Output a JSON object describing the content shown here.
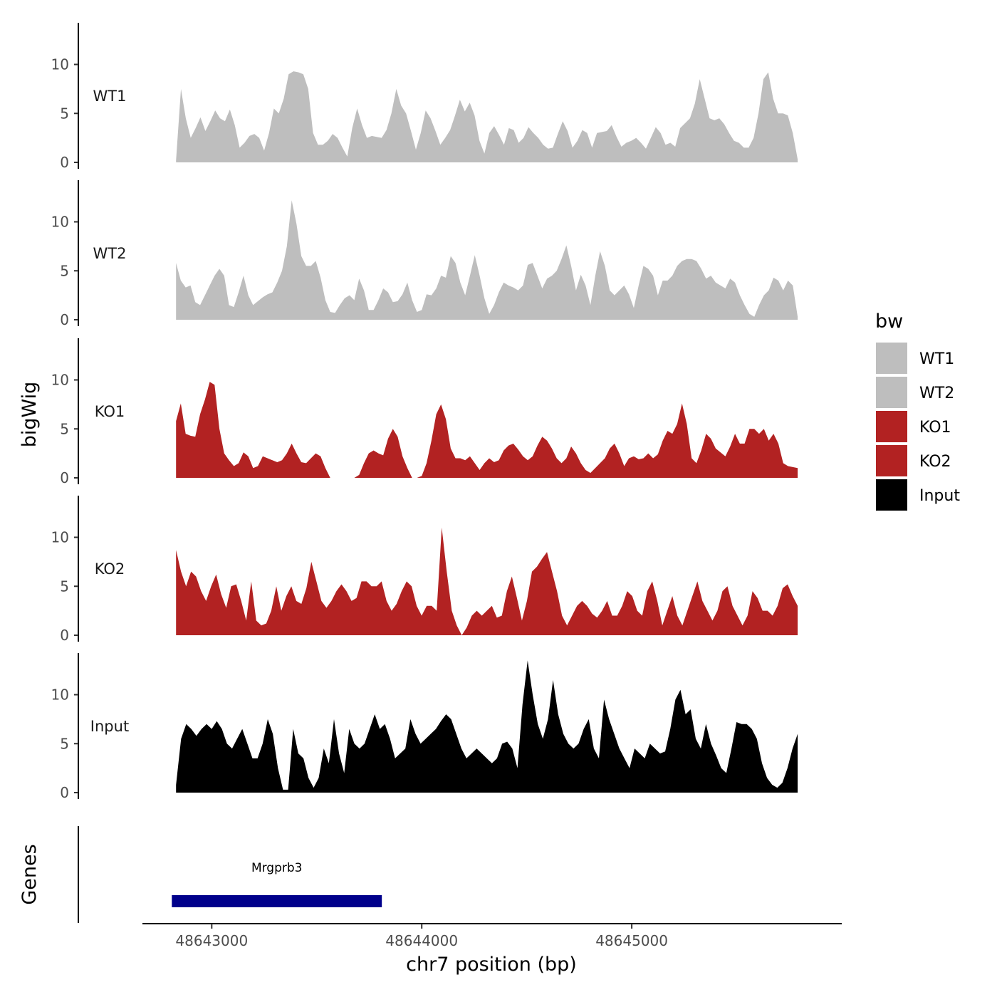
{
  "chart_data": {
    "type": "area",
    "xlabel": "chr7 position (bp)",
    "ylabel": "bigWig",
    "genes_label": "Genes",
    "xlim": [
      48642670,
      48646000
    ],
    "ylim": [
      0,
      14
    ],
    "x_ticks": [
      48643000,
      48644000,
      48645000
    ],
    "y_ticks": [
      0,
      5,
      10
    ],
    "legend": {
      "title": "bw",
      "entries": [
        {
          "label": "WT1",
          "color": "#bebebe"
        },
        {
          "label": "WT2",
          "color": "#bebebe"
        },
        {
          "label": "KO1",
          "color": "#b22222"
        },
        {
          "label": "KO2",
          "color": "#b22222"
        },
        {
          "label": "Input",
          "color": "#000000"
        }
      ]
    },
    "x_start": 48642830,
    "x_end": 48645790,
    "series": [
      {
        "name": "WT1",
        "color": "#bebebe",
        "values": [
          0.2,
          7.5,
          4.5,
          2.5,
          3.5,
          4.6,
          3.2,
          4.2,
          5.3,
          4.5,
          4.2,
          5.4,
          3.8,
          1.5,
          2.0,
          2.7,
          2.9,
          2.5,
          1.2,
          3.0,
          5.5,
          5.0,
          6.5,
          9.0,
          9.3,
          9.2,
          9.0,
          7.5,
          3.0,
          1.8,
          1.8,
          2.2,
          2.9,
          2.5,
          1.5,
          0.6,
          3.5,
          5.5,
          3.8,
          2.5,
          2.7,
          2.6,
          2.5,
          3.3,
          5.0,
          7.5,
          5.8,
          5.0,
          3.2,
          1.3,
          3.0,
          5.3,
          4.5,
          3.2,
          1.8,
          2.5,
          3.3,
          4.8,
          6.4,
          5.2,
          6.1,
          4.8,
          2.2,
          0.9,
          3.0,
          3.7,
          2.8,
          1.8,
          3.5,
          3.3,
          2.0,
          2.5,
          3.6,
          3.0,
          2.5,
          1.8,
          1.4,
          1.5,
          2.9,
          4.2,
          3.2,
          1.5,
          2.2,
          3.3,
          3.0,
          1.5,
          3.0,
          3.1,
          3.2,
          3.8,
          2.6,
          1.6,
          2.0,
          2.2,
          2.5,
          2.0,
          1.4,
          2.5,
          3.6,
          3.0,
          1.8,
          2.0,
          1.6,
          3.5,
          4.0,
          4.5,
          6.0,
          8.5,
          6.5,
          4.5,
          4.3,
          4.5,
          3.9,
          3.0,
          2.2,
          2.0,
          1.5,
          1.5,
          2.5,
          5.0,
          8.5,
          9.2,
          6.5,
          5.0,
          5.0,
          4.8,
          3.0,
          0.3
        ]
      },
      {
        "name": "WT2",
        "color": "#bebebe",
        "values": [
          5.8,
          4.0,
          3.3,
          3.5,
          1.8,
          1.5,
          2.5,
          3.5,
          4.5,
          5.2,
          4.5,
          1.5,
          1.3,
          2.8,
          4.5,
          2.5,
          1.5,
          1.9,
          2.3,
          2.6,
          2.8,
          3.8,
          5.0,
          7.5,
          12.2,
          9.8,
          6.5,
          5.5,
          5.5,
          6.0,
          4.3,
          2.0,
          0.8,
          0.7,
          1.5,
          2.2,
          2.5,
          2.0,
          4.2,
          3.0,
          1.0,
          1.0,
          2.0,
          3.2,
          2.8,
          1.8,
          1.9,
          2.6,
          3.8,
          2.0,
          0.8,
          1.0,
          2.6,
          2.5,
          3.2,
          4.5,
          4.3,
          6.5,
          5.8,
          3.8,
          2.5,
          4.5,
          6.6,
          4.5,
          2.2,
          0.6,
          1.5,
          2.8,
          3.8,
          3.5,
          3.3,
          3.0,
          3.5,
          5.6,
          5.8,
          4.5,
          3.2,
          4.2,
          4.5,
          5.0,
          6.2,
          7.6,
          5.5,
          3.0,
          4.6,
          3.5,
          1.5,
          4.5,
          7.0,
          5.5,
          3.0,
          2.5,
          3.0,
          3.5,
          2.6,
          1.2,
          3.5,
          5.5,
          5.2,
          4.5,
          2.5,
          4.0,
          4.0,
          4.5,
          5.5,
          6.0,
          6.2,
          6.2,
          6.0,
          5.2,
          4.2,
          4.5,
          3.8,
          3.5,
          3.2,
          4.2,
          3.8,
          2.5,
          1.5,
          0.6,
          0.3,
          1.5,
          2.5,
          3.0,
          4.3,
          4.0,
          3.0,
          4.0,
          3.5,
          0.3
        ]
      },
      {
        "name": "KO1",
        "color": "#b22222",
        "values": [
          5.8,
          7.6,
          4.5,
          4.3,
          4.2,
          6.5,
          8.0,
          9.8,
          9.5,
          5.0,
          2.5,
          1.8,
          1.2,
          1.5,
          2.6,
          2.2,
          1.0,
          1.2,
          2.2,
          2.0,
          1.8,
          1.6,
          1.8,
          2.5,
          3.5,
          2.5,
          1.6,
          1.5,
          2.0,
          2.5,
          2.2,
          1.0,
          0.0,
          0.0,
          0.0,
          0.0,
          0.0,
          0.0,
          0.3,
          1.5,
          2.5,
          2.8,
          2.5,
          2.3,
          4.0,
          5.0,
          4.2,
          2.2,
          1.0,
          0.0,
          0.0,
          0.2,
          1.5,
          3.8,
          6.5,
          7.5,
          6.0,
          3.0,
          2.0,
          2.0,
          1.8,
          2.2,
          1.5,
          0.8,
          1.5,
          2.0,
          1.6,
          1.8,
          2.8,
          3.3,
          3.5,
          2.9,
          2.2,
          1.8,
          2.2,
          3.3,
          4.2,
          3.8,
          3.0,
          2.0,
          1.5,
          2.0,
          3.2,
          2.5,
          1.5,
          0.8,
          0.5,
          1.0,
          1.5,
          2.0,
          3.0,
          3.5,
          2.5,
          1.2,
          2.0,
          2.2,
          1.9,
          2.0,
          2.5,
          2.0,
          2.4,
          3.8,
          4.8,
          4.5,
          5.5,
          7.6,
          5.5,
          2.0,
          1.5,
          2.8,
          4.5,
          4.0,
          3.0,
          2.6,
          2.2,
          3.2,
          4.5,
          3.5,
          3.5,
          5.0,
          5.0,
          4.5,
          5.0,
          3.8,
          4.5,
          3.5,
          1.5,
          1.2,
          1.1,
          1.0
        ]
      },
      {
        "name": "KO2",
        "color": "#b22222",
        "values": [
          8.7,
          6.5,
          5.0,
          6.5,
          6.0,
          4.5,
          3.5,
          5.0,
          6.2,
          4.2,
          2.8,
          5.0,
          5.2,
          3.5,
          1.5,
          5.5,
          1.5,
          1.0,
          1.2,
          2.5,
          5.0,
          2.5,
          4.0,
          5.0,
          3.5,
          3.2,
          4.8,
          7.5,
          5.5,
          3.5,
          2.8,
          3.5,
          4.5,
          5.2,
          4.5,
          3.5,
          3.8,
          5.5,
          5.5,
          5.0,
          5.0,
          5.5,
          3.5,
          2.5,
          3.2,
          4.5,
          5.5,
          5.0,
          3.0,
          2.0,
          3.0,
          3.0,
          2.5,
          11.0,
          6.5,
          2.5,
          1.0,
          0.0,
          0.8,
          2.0,
          2.5,
          2.0,
          2.5,
          3.0,
          1.8,
          2.0,
          4.5,
          6.0,
          3.8,
          1.5,
          3.5,
          6.5,
          7.0,
          7.8,
          8.5,
          6.5,
          4.5,
          2.0,
          1.0,
          2.0,
          3.0,
          3.5,
          3.0,
          2.2,
          1.8,
          2.5,
          3.5,
          2.0,
          2.0,
          3.0,
          4.5,
          4.0,
          2.5,
          2.0,
          4.5,
          5.5,
          3.5,
          1.0,
          2.5,
          4.0,
          2.0,
          1.0,
          2.5,
          4.0,
          5.5,
          3.5,
          2.5,
          1.5,
          2.5,
          4.5,
          5.0,
          3.0,
          2.0,
          1.0,
          2.0,
          4.5,
          3.8,
          2.5,
          2.5,
          2.0,
          3.0,
          4.8,
          5.2,
          4.0,
          3.0
        ]
      },
      {
        "name": "Input",
        "color": "#000000",
        "values": [
          0.8,
          5.5,
          7.0,
          6.5,
          5.8,
          6.5,
          7.0,
          6.5,
          7.3,
          6.5,
          5.0,
          4.5,
          5.5,
          6.5,
          5.0,
          3.5,
          3.5,
          5.0,
          7.5,
          6.0,
          2.5,
          0.3,
          0.3,
          6.5,
          4.0,
          3.5,
          1.5,
          0.5,
          1.5,
          4.5,
          3.0,
          7.5,
          4.0,
          2.0,
          6.5,
          5.0,
          4.5,
          5.0,
          6.5,
          8.0,
          6.5,
          7.0,
          5.5,
          3.5,
          4.0,
          4.5,
          7.5,
          6.0,
          5.0,
          5.5,
          6.0,
          6.5,
          7.3,
          8.0,
          7.5,
          6.0,
          4.5,
          3.5,
          4.0,
          4.5,
          4.0,
          3.5,
          3.0,
          3.5,
          5.0,
          5.2,
          4.5,
          2.5,
          9.0,
          13.5,
          10.0,
          7.0,
          5.5,
          7.5,
          11.5,
          8.0,
          6.0,
          5.0,
          4.5,
          5.0,
          6.5,
          7.5,
          4.5,
          3.5,
          9.5,
          7.5,
          6.0,
          4.5,
          3.5,
          2.5,
          4.5,
          4.0,
          3.5,
          5.0,
          4.5,
          4.0,
          4.2,
          6.5,
          9.5,
          10.5,
          8.0,
          8.5,
          5.5,
          4.5,
          7.0,
          5.0,
          3.8,
          2.5,
          2.0,
          4.5,
          7.2,
          7.0,
          7.0,
          6.5,
          5.5,
          3.0,
          1.5,
          0.8,
          0.5,
          1.0,
          2.5,
          4.5,
          6.0
        ]
      }
    ],
    "genes": [
      {
        "name": "Mrgprb3",
        "start": 48642810,
        "end": 48643810,
        "color": "#00008b"
      }
    ]
  }
}
